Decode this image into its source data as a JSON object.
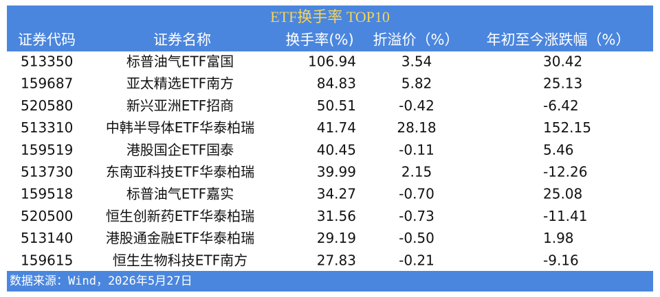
{
  "title": "ETF换手率 TOP10",
  "table": {
    "header": [
      "证券代码",
      "证券名称",
      "换手率(%)",
      "折溢价（%）",
      "年初至今涨跌幅（%）"
    ],
    "rows": [
      [
        "513350",
        "标普油气ETF富国",
        "106.94",
        "3.54",
        "30.42"
      ],
      [
        "159687",
        "亚太精选ETF南方",
        "84.83",
        "5.82",
        "25.13"
      ],
      [
        "520580",
        "新兴亚洲ETF招商",
        "50.51",
        "-0.42",
        "-6.42"
      ],
      [
        "513310",
        "中韩半导体ETF华泰柏瑞",
        "41.74",
        "28.18",
        "152.15"
      ],
      [
        "159519",
        "港股国企ETF国泰",
        "40.45",
        "-0.11",
        "5.46"
      ],
      [
        "513730",
        "东南亚科技ETF华泰柏瑞",
        "39.99",
        "2.15",
        "-12.26"
      ],
      [
        "159518",
        "标普油气ETF嘉实",
        "34.27",
        "-0.70",
        "25.08"
      ],
      [
        "520500",
        "恒生创新药ETF华泰柏瑞",
        "31.56",
        "-0.73",
        "-11.41"
      ],
      [
        "513140",
        "港股通金融ETF华泰柏瑞",
        "29.19",
        "-0.50",
        "1.98"
      ],
      [
        "159615",
        "恒生生物科技ETF南方",
        "27.83",
        "-0.21",
        "-9.16"
      ]
    ]
  },
  "footer": "数据来源：Wind，2026年5月27日"
}
